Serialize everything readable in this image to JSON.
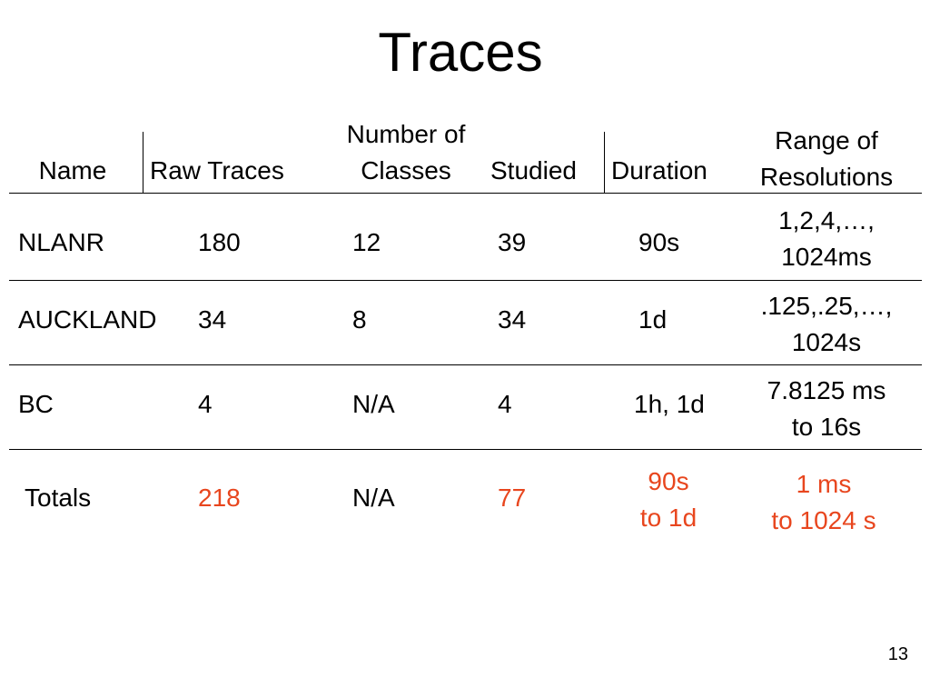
{
  "title": "Traces",
  "table": {
    "header": [
      "Name",
      "Raw Traces",
      "Number of\nClasses",
      "Studied",
      "Duration",
      "Range of\nResolutions"
    ],
    "rows": [
      [
        "NLANR",
        "180",
        "12",
        "39",
        "90s",
        "1,2,4,…,\n1024ms"
      ],
      [
        "AUCKLAND",
        "34",
        "8",
        "34",
        "1d",
        ".125,.25,…,\n1024s"
      ],
      [
        "BC",
        "4",
        "N/A",
        "4",
        "1h, 1d",
        "7.8125 ms\nto 16s"
      ]
    ],
    "totals": [
      "Totals",
      "218",
      "N/A",
      "77",
      "90s\nto 1d",
      "1 ms\nto 1024 s"
    ]
  },
  "page_number": "13"
}
